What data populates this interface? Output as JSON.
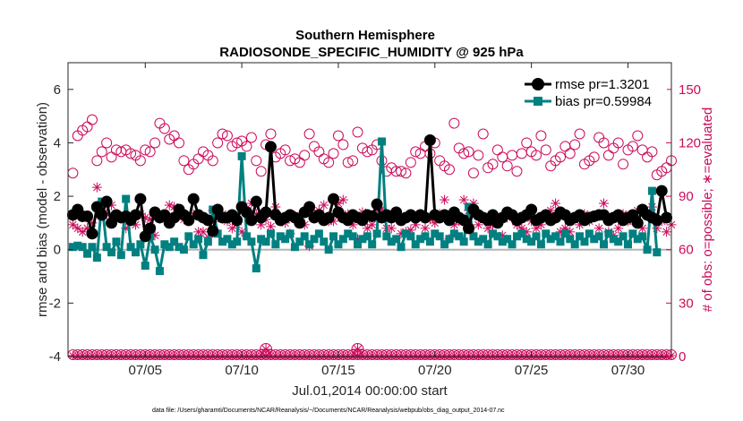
{
  "chart_data": {
    "type": "line",
    "title": "Southern Hemisphere",
    "subtitle": "RADIOSONDE_SPECIFIC_HUMIDITY @ 925 hPa",
    "xlabel": "Jul.01,2014 00:00:00 start",
    "ylabel": "rmse and bias (model - observation)",
    "ylabel_right": "# of obs: o=possible; ∗=evaluated",
    "footnote": "data file: /Users/gharamti/Documents/NCAR/Reanalysis/~/Documents/NCAR/Reanalysis/webpub/obs_diag_output_2014-07.nc",
    "xlim": [
      1,
      32.25
    ],
    "ylim": [
      -4,
      7
    ],
    "ylim_right": [
      0,
      165
    ],
    "x_tick_values": [
      5,
      10,
      15,
      20,
      25,
      30
    ],
    "x_tick_labels": [
      "07/05",
      "07/10",
      "07/15",
      "07/20",
      "07/25",
      "07/30"
    ],
    "y_tick_labels": [
      "-4",
      "-2",
      "0",
      "2",
      "4",
      "6"
    ],
    "y_tick_values": [
      -4,
      -2,
      0,
      2,
      4,
      6
    ],
    "y2_tick_labels": [
      "0",
      "30",
      "60",
      "90",
      "120",
      "150"
    ],
    "y2_tick_values": [
      0,
      30,
      60,
      90,
      120,
      150
    ],
    "colors": {
      "rmse": "#000000",
      "bias": "#008080",
      "obs": "#cc0a5a",
      "zero": "#b4b4b4"
    },
    "legend": {
      "position": "top-right",
      "rmse_label": "rmse pr=1.3201",
      "bias_label": "bias pr=0.59984"
    },
    "x_start": 1.25,
    "x_step": 0.25,
    "series": [
      {
        "name": "rmse",
        "values": [
          1.3,
          1.5,
          1.25,
          1.25,
          0.6,
          1.6,
          1.3,
          1.8,
          1.0,
          1.3,
          1.2,
          1.25,
          1.1,
          1.3,
          1.9,
          0.5,
          0.8,
          1.4,
          1.2,
          1.3,
          1.0,
          1.2,
          1.5,
          1.3,
          1.1,
          1.9,
          1.3,
          1.2,
          1.1,
          0.7,
          1.5,
          1.2,
          1.2,
          1.3,
          1.1,
          1.6,
          1.4,
          1.1,
          1.8,
          1.2,
          1.4,
          3.85,
          1.3,
          1.1,
          1.2,
          1.3,
          1.2,
          1.0,
          1.4,
          1.6,
          1.2,
          1.3,
          1.1,
          1.2,
          1.9,
          1.4,
          1.2,
          1.1,
          1.3,
          1.2,
          1.1,
          1.3,
          1.25,
          1.7,
          1.2,
          1.3,
          1.2,
          1.4,
          1.1,
          1.2,
          1.3,
          1.2,
          1.3,
          1.2,
          4.1,
          1.3,
          1.2,
          1.3,
          1.1,
          1.4,
          1.2,
          1.1,
          0.8,
          1.5,
          1.3,
          1.2,
          1.1,
          1.3,
          1.0,
          1.2,
          1.4,
          1.3,
          1.1,
          1.2,
          1.3,
          1.5,
          1.1,
          1.2,
          1.3,
          1.1,
          1.2,
          1.4,
          1.3,
          1.1,
          1.2,
          1.3,
          1.1,
          1.2,
          1.25,
          1.3,
          1.3,
          1.1,
          1.2,
          1.3,
          1.1,
          1.2,
          1.3,
          1.0,
          1.5,
          1.3,
          1.2,
          1.1,
          2.2,
          1.2
        ],
        "markers": [
          1.3,
          1.5,
          1.25,
          1.25,
          0.6,
          1.6,
          1.3,
          1.8,
          1.0,
          1.3,
          1.2,
          1.25,
          1.1,
          1.3,
          1.9,
          0.5,
          0.8,
          1.4,
          1.2,
          1.3,
          1.0,
          1.2,
          1.5,
          1.3,
          1.1,
          1.9,
          1.3,
          1.2,
          1.1,
          0.7,
          1.5,
          1.2,
          1.2,
          1.3,
          1.1,
          1.6,
          1.4,
          1.1,
          1.8,
          1.2,
          1.4,
          3.85,
          1.3,
          1.1,
          1.2,
          1.3,
          1.2,
          1.0,
          1.4,
          1.6,
          1.2,
          1.3,
          1.1,
          1.2,
          1.9,
          1.4,
          1.2,
          1.1,
          1.3,
          1.2,
          1.1,
          1.3,
          1.25,
          1.7,
          1.2,
          1.3,
          1.2,
          1.4,
          1.1,
          1.2,
          1.3,
          1.2,
          1.3,
          1.2,
          4.1,
          1.3,
          1.2,
          1.3,
          1.1,
          1.4,
          1.2,
          1.1,
          0.8,
          1.5,
          1.3,
          1.2,
          1.1,
          1.3,
          1.0,
          1.2,
          1.4,
          1.3,
          1.1,
          1.2,
          1.3,
          1.5,
          1.1,
          1.2,
          1.3,
          1.1,
          1.2,
          1.4,
          1.3,
          1.1,
          1.2,
          1.3,
          1.1,
          1.2,
          1.25,
          1.3,
          1.3,
          1.1,
          1.2,
          1.3,
          1.1,
          1.2,
          1.3,
          1.0,
          1.5,
          1.3,
          1.2,
          1.1,
          2.2,
          1.2
        ]
      },
      {
        "name": "bias",
        "values": [
          0.1,
          0.15,
          0.1,
          -0.15,
          0.1,
          -0.3,
          1.8,
          0.1,
          -0.1,
          0.3,
          -0.2,
          1.9,
          0.1,
          -0.1,
          0.2,
          -0.6,
          0.5,
          0.0,
          -0.8,
          0.2,
          0.1,
          0.3,
          0.1,
          0.0,
          0.5,
          0.2,
          0.4,
          -0.2,
          0.3,
          1.5,
          0.6,
          0.3,
          0.4,
          0.2,
          0.3,
          3.5,
          0.5,
          0.3,
          -0.7,
          0.4,
          0.3,
          0.6,
          0.2,
          0.5,
          0.4,
          0.6,
          0.1,
          0.3,
          0.5,
          0.2,
          0.4,
          0.6,
          0.3,
          0.0,
          0.5,
          0.2,
          0.4,
          0.6,
          0.5,
          0.2,
          0.4,
          0.5,
          0.2,
          0.6,
          4.05,
          0.5,
          0.3,
          0.4,
          0.1,
          0.6,
          0.5,
          0.2,
          0.4,
          0.5,
          0.3,
          0.6,
          0.5,
          0.2,
          0.4,
          0.6,
          0.5,
          0.3,
          1.6,
          0.5,
          0.3,
          0.4,
          0.2,
          0.6,
          0.5,
          0.3,
          0.4,
          0.2,
          0.5,
          0.6,
          0.4,
          0.3,
          0.5,
          0.2,
          0.6,
          0.4,
          0.5,
          0.3,
          0.6,
          0.4,
          0.2,
          0.5,
          0.3,
          0.6,
          0.4,
          0.5,
          0.2,
          0.6,
          0.4,
          0.3,
          0.5,
          0.2,
          0.6,
          0.4,
          0.5,
          0.0,
          2.2,
          -0.1
        ],
        "markers": [
          0.1,
          0.15,
          0.1,
          -0.15,
          0.1,
          -0.3,
          1.8,
          0.1,
          -0.1,
          0.3,
          -0.2,
          1.9,
          0.1,
          -0.1,
          0.2,
          -0.6,
          0.5,
          0.0,
          -0.8,
          0.2,
          0.1,
          0.3,
          0.1,
          0.0,
          0.5,
          0.2,
          0.4,
          -0.2,
          0.3,
          1.5,
          0.6,
          0.3,
          0.4,
          0.2,
          0.3,
          3.5,
          0.5,
          0.3,
          -0.7,
          0.4,
          0.3,
          0.6,
          0.2,
          0.5,
          0.4,
          0.6,
          0.1,
          0.3,
          0.5,
          0.2,
          0.4,
          0.6,
          0.3,
          0.0,
          0.5,
          0.2,
          0.4,
          0.6,
          0.5,
          0.2,
          0.4,
          0.5,
          0.2,
          0.6,
          4.05,
          0.5,
          0.3,
          0.4,
          0.1,
          0.6,
          0.5,
          0.2,
          0.4,
          0.5,
          0.3,
          0.6,
          0.5,
          0.2,
          0.4,
          0.6,
          0.5,
          0.3,
          1.6,
          0.5,
          0.3,
          0.4,
          0.2,
          0.6,
          0.5,
          0.3,
          0.4,
          0.2,
          0.5,
          0.6,
          0.4,
          0.3,
          0.5,
          0.2,
          0.6,
          0.4,
          0.5,
          0.3,
          0.6,
          0.4,
          0.2,
          0.5,
          0.3,
          0.6,
          0.4,
          0.5,
          0.2,
          0.6,
          0.4,
          0.3,
          0.5,
          0.2,
          0.6,
          0.4,
          0.5,
          0.0,
          2.2,
          -0.1
        ]
      },
      {
        "name": "obs_possible",
        "axis": "right",
        "values": [
          103,
          124,
          127,
          129,
          133,
          110,
          115,
          120,
          112,
          116,
          115,
          116,
          114,
          113,
          110,
          116,
          115,
          120,
          131,
          128,
          122,
          124,
          120,
          110,
          105,
          108,
          111,
          115,
          113,
          110,
          120,
          125,
          124,
          118,
          120,
          121,
          118,
          123,
          110,
          104,
          119,
          125,
          112,
          114,
          116,
          110,
          111,
          109,
          113,
          125,
          118,
          115,
          111,
          109,
          114,
          124,
          119,
          109,
          110,
          126,
          117,
          115,
          116,
          119,
          110,
          104,
          106,
          104,
          104,
          103,
          109,
          115,
          114,
          118,
          114,
          120,
          110,
          107,
          105,
          131,
          117,
          114,
          115,
          103,
          113,
          125,
          106,
          108,
          116,
          112,
          107,
          113,
          104,
          114,
          120,
          115,
          113,
          124,
          116,
          107,
          110,
          112,
          118,
          114,
          119,
          125,
          108,
          110,
          112,
          123,
          120,
          113,
          117,
          120,
          108,
          116,
          118,
          124,
          116,
          112,
          115,
          102,
          104,
          106,
          110
        ]
      },
      {
        "name": "obs_evaluated",
        "axis": "right",
        "values": [
          74,
          72,
          70,
          72,
          75,
          95,
          82,
          80,
          85,
          77,
          78,
          72,
          76,
          74,
          80,
          78,
          77,
          68,
          80,
          78,
          85,
          84,
          79,
          77,
          76,
          80,
          70,
          70,
          67,
          82,
          78,
          80,
          76,
          72,
          74,
          70,
          82,
          86,
          80,
          74,
          77,
          73,
          84,
          76,
          75,
          69,
          79,
          77,
          74,
          62,
          80,
          82,
          85,
          76,
          76,
          86,
          88,
          80,
          74,
          66,
          81,
          72,
          74,
          82,
          83,
          72,
          72,
          78,
          69,
          70,
          71,
          74,
          80,
          72,
          77,
          75,
          80,
          88,
          66,
          74,
          76,
          88,
          82,
          86,
          74,
          78,
          72,
          74,
          76,
          68,
          78,
          80,
          74,
          72,
          70,
          76,
          72,
          74,
          80,
          82,
          86,
          70,
          72,
          70,
          78,
          74,
          80,
          76,
          78,
          72,
          86,
          70,
          68,
          72,
          80,
          76,
          76,
          82,
          72,
          80,
          84,
          72,
          76,
          70,
          74
        ]
      }
    ],
    "bottom_obs": {
      "possible_value": 1,
      "evaluated_value": 0.5,
      "large_at_x": [
        11.25,
        16.0
      ]
    }
  }
}
